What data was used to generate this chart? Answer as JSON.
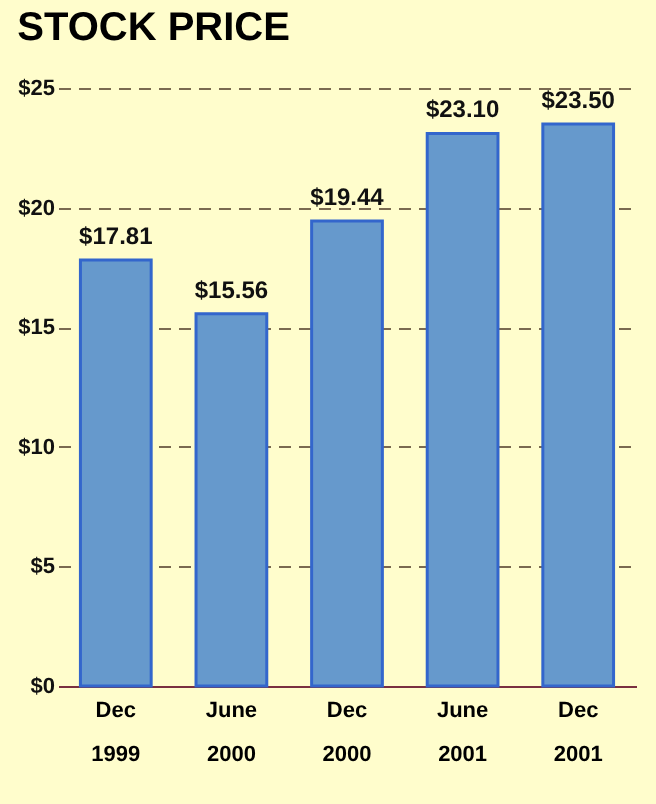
{
  "chart_data": {
    "type": "bar",
    "title": "STOCK PRICE",
    "categories": [
      "Dec 1999",
      "June 2000",
      "Dec 2000",
      "June 2001",
      "Dec 2001"
    ],
    "values": [
      17.81,
      15.56,
      19.44,
      23.1,
      23.5
    ],
    "value_labels": [
      "$17.81",
      "$15.56",
      "$19.44",
      "$23.10",
      "$23.50"
    ],
    "color": "#6699cc",
    "ylim": [
      0,
      25
    ],
    "yticks": [
      {
        "value": 0,
        "label": "$0"
      },
      {
        "value": 5,
        "label": "$5"
      },
      {
        "value": 10,
        "label": "$10"
      },
      {
        "value": 15,
        "label": "$15"
      },
      {
        "value": 20,
        "label": "$20"
      },
      {
        "value": 25,
        "label": "$25"
      }
    ],
    "grid": "y"
  }
}
